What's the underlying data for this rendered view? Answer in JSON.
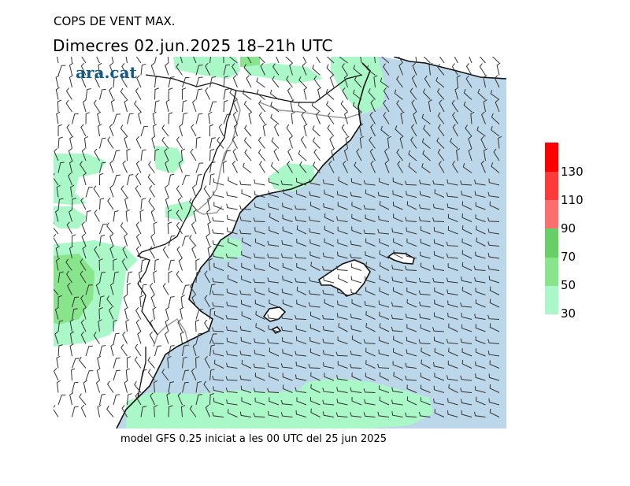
{
  "map": {
    "title": "COPS DE VENT MAX.",
    "subtitle": "Dimecres  02.jun.2025  18–21h  UTC",
    "logo": "ara.cat",
    "footer": "model GFS 0.25 iniciat a les 00 UTC del 25 jun 2025"
  },
  "legend": {
    "ticks": [
      "30",
      "50",
      "70",
      "90",
      "110",
      "130"
    ],
    "colors": [
      "#aaf7c8",
      "#88e58c",
      "#66cf66",
      "#ff6f6f",
      "#ff3a3a",
      "#ff0000"
    ]
  },
  "palette": {
    "sea": "#bcd7ea",
    "land": "#ffffff",
    "gust_30_50": "#aaf7c8",
    "gust_50_70": "#88e58c",
    "gust_70_90": "#66cf66",
    "coast": "#111111",
    "border": "#9a9a9a",
    "barb": "#333333"
  }
}
